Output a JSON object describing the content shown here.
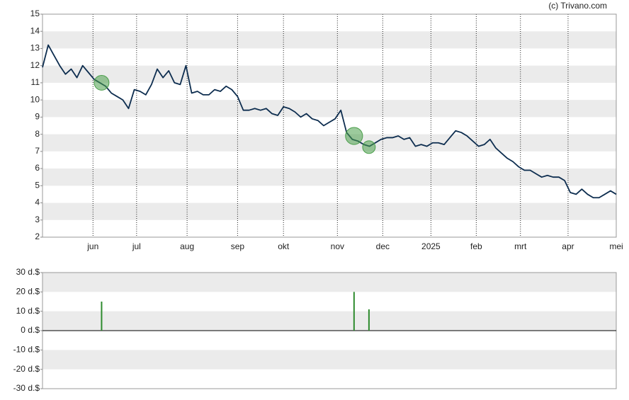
{
  "copyright": "(c) Trivano.com",
  "chart_data": [
    {
      "type": "line",
      "series": [
        {
          "color": "#0d2d4f",
          "values": [
            11.9,
            13.2,
            12.6,
            12.0,
            11.5,
            11.8,
            11.3,
            12.0,
            11.6,
            11.2,
            11.0,
            10.8,
            10.4,
            10.2,
            10.0,
            9.5,
            10.6,
            10.5,
            10.3,
            10.9,
            11.8,
            11.3,
            11.7,
            11.0,
            10.9,
            12.0,
            10.4,
            10.5,
            10.3,
            10.3,
            10.6,
            10.5,
            10.8,
            10.6,
            10.2,
            9.4,
            9.4,
            9.5,
            9.4,
            9.5,
            9.2,
            9.1,
            9.6,
            9.5,
            9.3,
            9.0,
            9.2,
            8.9,
            8.8,
            8.5,
            8.7,
            8.9,
            9.4,
            8.1,
            7.7,
            7.6,
            7.4,
            7.3,
            7.5,
            7.7,
            7.8,
            7.8,
            7.9,
            7.7,
            7.8,
            7.3,
            7.4,
            7.3,
            7.5,
            7.5,
            7.4,
            7.8,
            8.2,
            8.1,
            7.9,
            7.6,
            7.3,
            7.4,
            7.7,
            7.2,
            6.9,
            6.6,
            6.4,
            6.1,
            5.9,
            5.9,
            5.7,
            5.5,
            5.6,
            5.5,
            5.5,
            5.3,
            4.6,
            4.5,
            4.8,
            4.5,
            4.3,
            4.3,
            4.5,
            4.7,
            4.5
          ]
        }
      ],
      "events": {
        "color": "#4a9e4a",
        "x": [
          10.3,
          54.3,
          56.9
        ],
        "values": [
          11.0,
          7.9,
          7.25
        ]
      },
      "xlim": [
        0,
        100
      ],
      "xticks": [
        {
          "value": 8.8,
          "label": "jun"
        },
        {
          "value": 16.4,
          "label": "jul"
        },
        {
          "value": 25.2,
          "label": "aug"
        },
        {
          "value": 34,
          "label": "sep"
        },
        {
          "value": 42,
          "label": "okt"
        },
        {
          "value": 51.4,
          "label": "nov"
        },
        {
          "value": 59.3,
          "label": "dec"
        },
        {
          "value": 67.7,
          "label": "2025"
        },
        {
          "value": 75.6,
          "label": "feb"
        },
        {
          "value": 83.3,
          "label": "mrt"
        },
        {
          "value": 91.6,
          "label": "apr"
        },
        {
          "value": 100,
          "label": "mei"
        }
      ],
      "ylim": [
        2,
        15
      ],
      "yticks": [
        2,
        3,
        4,
        5,
        6,
        7,
        8,
        9,
        10,
        11,
        12,
        13,
        14,
        15
      ],
      "grid": true
    },
    {
      "type": "bar",
      "color": "#2e8b2e",
      "x": [
        10.3,
        54.3,
        56.9
      ],
      "values": [
        15,
        20,
        11
      ],
      "xlim": [
        0,
        100
      ],
      "ylim": [
        -30,
        30
      ],
      "yticks": [
        {
          "value": -30,
          "label": "-30 d.$"
        },
        {
          "value": -20,
          "label": "-20 d.$"
        },
        {
          "value": -10,
          "label": "-10 d.$"
        },
        {
          "value": 0,
          "label": "0 d.$"
        },
        {
          "value": 10,
          "label": "10 d.$"
        },
        {
          "value": 20,
          "label": "20 d.$"
        },
        {
          "value": 30,
          "label": "30 d.$"
        }
      ]
    }
  ]
}
